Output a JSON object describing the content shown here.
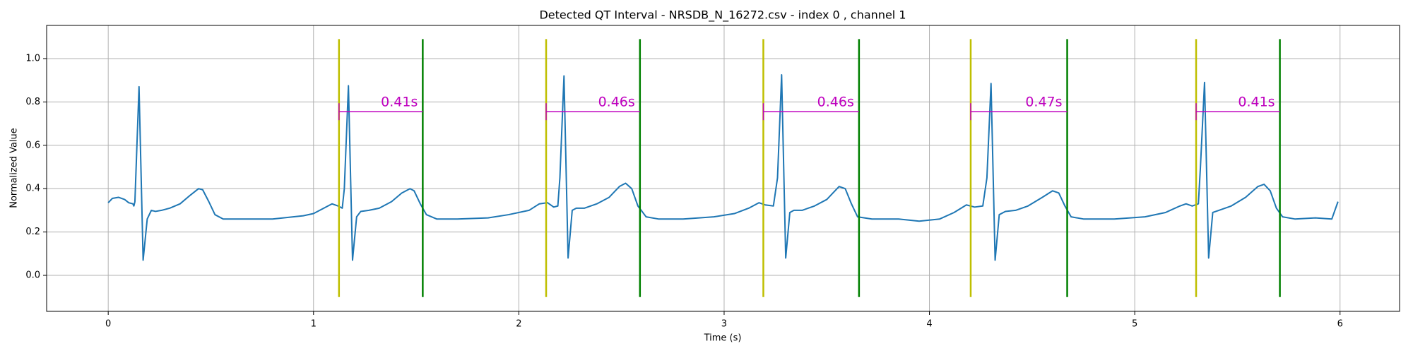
{
  "chart_data": {
    "type": "line",
    "title": "Detected QT Interval - NRSDB_N_16272.csv - index 0 , channel 1",
    "x_label": "Time (s)",
    "y_label": "Normalized Value",
    "xlim": [
      -0.3,
      6.29
    ],
    "ylim": [
      -0.166,
      1.153
    ],
    "xticks": [
      0,
      1,
      2,
      3,
      4,
      5,
      6
    ],
    "yticks": [
      {
        "value": 0,
        "label": "0.0"
      },
      {
        "value": 0.2,
        "label": "0.2"
      },
      {
        "value": 0.4,
        "label": "0.4"
      },
      {
        "value": 0.6,
        "label": "0.6"
      },
      {
        "value": 0.8,
        "label": "0.8"
      },
      {
        "value": 1.0,
        "label": "1.0"
      }
    ],
    "grid": true,
    "series": [
      {
        "color": "#1f77b4",
        "x": [
          0.0,
          0.02,
          0.05,
          0.08,
          0.1,
          0.12,
          0.125,
          0.13,
          0.15,
          0.17,
          0.19,
          0.21,
          0.23,
          0.26,
          0.3,
          0.35,
          0.4,
          0.44,
          0.46,
          0.49,
          0.52,
          0.56,
          0.65,
          0.8,
          0.95,
          1.0,
          1.05,
          1.09,
          1.12,
          1.14,
          1.15,
          1.17,
          1.19,
          1.21,
          1.23,
          1.27,
          1.32,
          1.38,
          1.43,
          1.47,
          1.49,
          1.52,
          1.55,
          1.6,
          1.7,
          1.85,
          1.95,
          2.05,
          2.1,
          2.14,
          2.17,
          2.19,
          2.2,
          2.22,
          2.24,
          2.26,
          2.28,
          2.32,
          2.38,
          2.44,
          2.49,
          2.52,
          2.55,
          2.58,
          2.62,
          2.68,
          2.8,
          2.95,
          3.05,
          3.12,
          3.17,
          3.2,
          3.24,
          3.26,
          3.28,
          3.3,
          3.32,
          3.34,
          3.38,
          3.44,
          3.5,
          3.56,
          3.59,
          3.62,
          3.65,
          3.72,
          3.85,
          3.95,
          4.05,
          4.12,
          4.18,
          4.22,
          4.26,
          4.28,
          4.3,
          4.32,
          4.34,
          4.37,
          4.42,
          4.48,
          4.55,
          4.6,
          4.63,
          4.66,
          4.69,
          4.75,
          4.9,
          5.05,
          5.15,
          5.22,
          5.25,
          5.28,
          5.31,
          5.32,
          5.34,
          5.36,
          5.38,
          5.41,
          5.47,
          5.54,
          5.6,
          5.63,
          5.66,
          5.69,
          5.72,
          5.78,
          5.88,
          5.96,
          5.99
        ],
        "values": [
          0.335,
          0.355,
          0.36,
          0.35,
          0.335,
          0.33,
          0.32,
          0.34,
          0.87,
          0.07,
          0.26,
          0.3,
          0.295,
          0.3,
          0.31,
          0.33,
          0.37,
          0.4,
          0.395,
          0.34,
          0.28,
          0.26,
          0.26,
          0.26,
          0.275,
          0.285,
          0.31,
          0.33,
          0.32,
          0.31,
          0.4,
          0.875,
          0.07,
          0.27,
          0.295,
          0.3,
          0.31,
          0.34,
          0.38,
          0.4,
          0.39,
          0.33,
          0.28,
          0.26,
          0.26,
          0.265,
          0.28,
          0.3,
          0.33,
          0.335,
          0.315,
          0.32,
          0.45,
          0.92,
          0.08,
          0.3,
          0.31,
          0.31,
          0.33,
          0.36,
          0.41,
          0.425,
          0.4,
          0.32,
          0.27,
          0.26,
          0.26,
          0.27,
          0.285,
          0.31,
          0.335,
          0.325,
          0.32,
          0.45,
          0.925,
          0.08,
          0.29,
          0.3,
          0.3,
          0.32,
          0.35,
          0.41,
          0.4,
          0.33,
          0.27,
          0.26,
          0.26,
          0.25,
          0.26,
          0.29,
          0.325,
          0.315,
          0.32,
          0.45,
          0.885,
          0.07,
          0.28,
          0.295,
          0.3,
          0.32,
          0.36,
          0.39,
          0.38,
          0.32,
          0.27,
          0.26,
          0.26,
          0.27,
          0.29,
          0.32,
          0.33,
          0.32,
          0.33,
          0.5,
          0.89,
          0.08,
          0.29,
          0.3,
          0.32,
          0.36,
          0.41,
          0.42,
          0.39,
          0.31,
          0.27,
          0.26,
          0.265,
          0.26,
          0.34
        ]
      }
    ],
    "onset_color": "#bfbf00",
    "end_color": "#008000",
    "bracket_color": "#bf00bf",
    "marker_ylim": [
      -0.1,
      1.09
    ],
    "bracket_level": 0.755,
    "intervals": [
      {
        "start": 1.124,
        "end": 1.532,
        "label": "0.41s"
      },
      {
        "start": 2.133,
        "end": 2.59,
        "label": "0.46s"
      },
      {
        "start": 3.191,
        "end": 3.657,
        "label": "0.46s"
      },
      {
        "start": 4.201,
        "end": 4.671,
        "label": "0.47s"
      },
      {
        "start": 5.299,
        "end": 5.707,
        "label": "0.41s"
      }
    ]
  }
}
